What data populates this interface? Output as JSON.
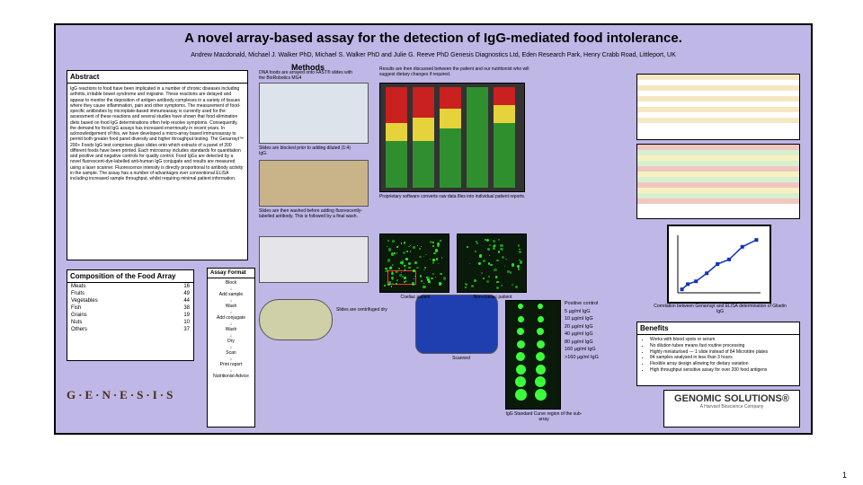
{
  "page_number": "1",
  "poster": {
    "background_color": "#bfb7e6",
    "title": "A novel array-based assay for the detection of IgG-mediated food intolerance.",
    "authors": "Andrew Macdonald, Michael J. Walker PhD, Michael S. Walker PhD and Julie G. Reeve PhD Genesis Diagnostics Ltd, Eden Research Park, Henry Crabb Road, Littleport, UK"
  },
  "abstract": {
    "heading": "Abstract",
    "body": "IgG reactions to food have been implicated in a number of chronic diseases including arthritis, irritable bowel syndrome and migraine. These reactions are delayed and appear to monitor the deposition of antigen-antibody complexes in a variety of tissues where they cause inflammation, pain and other symptoms. The measurement of food-specific antibodies by microplate-based immunoassay is currently used for the assessment of these reactions and several studies have shown that food elimination diets based on food IgG determinations often help resolve symptoms. Consequently, the demand for food IgG assays has increased enormously in recent years. In acknowledgement of this, we have developed a micro-array based immunoassay to permit both greater food panel diversity and higher throughput testing. The Genarrayt™ 200+ Foods IgG test comprises glass slides onto which extracts of a panel of 200 different foods have been printed. Each microarray includes standards for quantitation and positive and negative controls for quality control. Food IgGs are detected by a novel fluorescent-dye-labelled anti-human IgG conjugate and results are measured using a laser scanner. Fluorescence intensity is directly proportional to antibody activity in the sample. The assay has a number of advantages over conventional ELISA including increased sample throughput, whilst requiring minimal patient information."
  },
  "composition": {
    "heading": "Composition of the Food Array",
    "rows": [
      [
        "Meats",
        "16"
      ],
      [
        "Fruits",
        "49"
      ],
      [
        "Vegetables",
        "44"
      ],
      [
        "Fish",
        "38"
      ],
      [
        "Grains",
        "19"
      ],
      [
        "Nuts",
        "10"
      ],
      [
        "Others",
        "37"
      ]
    ]
  },
  "methods": {
    "heading": "Methods",
    "cap_arrayer": "DNA foods are arrayed onto FAST® slides with the BioRobotics MG4",
    "cap_tray": "Slides are blocked prior to adding diluted (1:4) IgG.",
    "cap_wash": "Slides are then washed before adding fluorescently-labelled antibody. This is followed by a final wash.",
    "cap_cent": "Slides are centrifuged dry",
    "cap_scan": "Scanned"
  },
  "assay_flow": {
    "heading": "Assay Format",
    "steps": [
      "Block",
      "↓",
      "Add sample",
      "↓",
      "Wash",
      "↓",
      "Add conjugate",
      "↓",
      "Wash",
      "↓",
      "Dry",
      "↓",
      "Scan",
      "↓",
      "Print report",
      "↓",
      "Nutritionist Advice"
    ]
  },
  "results": {
    "cap_top": "Results are then discussed between the patient and our nutritionist who will suggest dietary changes if required.",
    "cap_heat": "Proprietary software converts raw data files into individual patient reports.",
    "heatmap_lanes": [
      {
        "x": 6,
        "segments": [
          [
            "#c92020",
            40
          ],
          [
            "#e6d23a",
            20
          ],
          [
            "#2f8f2f",
            52
          ]
        ]
      },
      {
        "x": 36,
        "segments": [
          [
            "#c92020",
            34
          ],
          [
            "#e6d23a",
            26
          ],
          [
            "#2f8f2f",
            52
          ]
        ]
      },
      {
        "x": 66,
        "segments": [
          [
            "#c92020",
            24
          ],
          [
            "#e6d23a",
            22
          ],
          [
            "#2f8f2f",
            66
          ]
        ]
      },
      {
        "x": 96,
        "segments": [
          [
            "#2f8f2f",
            112
          ]
        ]
      },
      {
        "x": 126,
        "segments": [
          [
            "#c92020",
            20
          ],
          [
            "#e6d23a",
            20
          ],
          [
            "#2f8f2f",
            72
          ]
        ]
      }
    ],
    "panel_labels": {
      "left": "Coeliac patient",
      "right": "Non-coeliac patient"
    },
    "std_heading": "IgG Standard Curve region of the sub-array",
    "std_rows": [
      "Positive control",
      "5 µg/ml IgG",
      "10 µg/ml IgG",
      "20 µg/ml IgG",
      "40 µg/ml IgG",
      "80 µg/ml IgG",
      "160 µg/ml IgG",
      ">160 µg/ml IgG"
    ],
    "std_spot_radii": [
      3,
      3.5,
      4,
      4.5,
      5,
      5.5,
      6,
      6.5
    ]
  },
  "correlation": {
    "caption": "Correlation between Genarrayt and ELISA determination of Gliadin IgG",
    "points": [
      [
        5,
        6
      ],
      [
        12,
        15
      ],
      [
        22,
        20
      ],
      [
        35,
        34
      ],
      [
        48,
        50
      ],
      [
        62,
        58
      ],
      [
        78,
        80
      ],
      [
        95,
        92
      ]
    ],
    "line_color": "#1030c0",
    "marker_color": "#1030c0",
    "xlim": [
      0,
      100
    ],
    "ylim": [
      0,
      100
    ]
  },
  "benefits": {
    "heading": "Benefits",
    "items": [
      "Works with blood spots or serum",
      "No dilution tubes means fast routine processing",
      "Highly miniaturised — 1 slide instead of 84 Microtitre plates",
      "84 samples analysed in less than 3 hours",
      "Flexible array design allowing for dietary variation",
      "High throughput sensitive assay for over 200 food antigens"
    ]
  },
  "tables_right": {
    "t1_band_colors": [
      "#f6e7c4",
      "#ffffff",
      "#f6e7c4",
      "#ffffff",
      "#f6e7c4",
      "#ffffff",
      "#f6e7c4",
      "#ffffff",
      "#f6e7c4",
      "#ffffff"
    ],
    "t2_band_colors": [
      "#f0c7c0",
      "#d6efcf",
      "#f7f0c0",
      "#d6efcf",
      "#f0c7c0",
      "#f7f0c0",
      "#d6efcf",
      "#f0c7c0",
      "#f7f0c0",
      "#d6efcf",
      "#f0c7c0"
    ]
  },
  "logos": {
    "genesis": "G·E·N·E·S·I·S",
    "gs_line1": "GENOMIC SOLUTIONS®",
    "gs_line2": "A Harvard Bioscience Company"
  }
}
